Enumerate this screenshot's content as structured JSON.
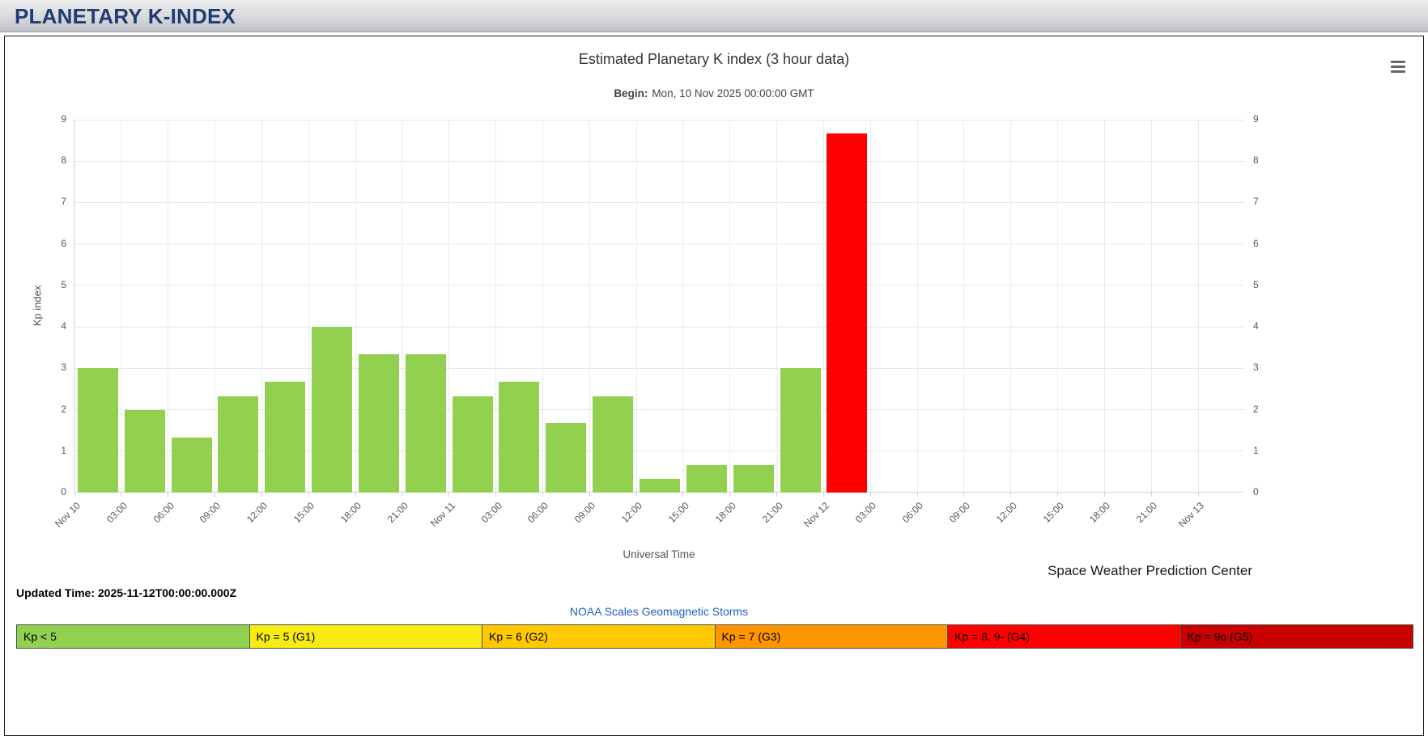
{
  "header": {
    "title": "PLANETARY K-INDEX"
  },
  "chart": {
    "title": "Estimated Planetary K index (3 hour data)",
    "subtitle_label": "Begin:",
    "subtitle_value": "Mon, 10 Nov 2025 00:00:00 GMT",
    "y_axis_label": "Kp index",
    "x_axis_label": "Universal Time",
    "credit": "Space Weather Prediction Center"
  },
  "chart_data": {
    "type": "bar",
    "title": "Estimated Planetary K index (3 hour data)",
    "subtitle": "Begin: Mon, 10 Nov 2025 00:00:00 GMT",
    "xlabel": "Universal Time",
    "ylabel": "Kp index",
    "ylim": [
      0,
      9
    ],
    "y_ticks": [
      0,
      1,
      2,
      3,
      4,
      5,
      6,
      7,
      8,
      9
    ],
    "grid": true,
    "legend_position": "none",
    "x_ticks": [
      "Nov 10",
      "03:00",
      "06:00",
      "09:00",
      "12:00",
      "15:00",
      "18:00",
      "21:00",
      "Nov 11",
      "03:00",
      "06:00",
      "09:00",
      "12:00",
      "15:00",
      "18:00",
      "21:00",
      "Nov 12",
      "03:00",
      "06:00",
      "09:00",
      "12:00",
      "15:00",
      "18:00",
      "21:00",
      "Nov 13"
    ],
    "values": [
      3,
      2,
      1.33,
      2.33,
      2.67,
      4,
      3.33,
      3.33,
      2.33,
      2.67,
      1.67,
      2.33,
      0.33,
      0.67,
      0.67,
      3,
      8.67
    ],
    "storm_threshold": 5,
    "colors": {
      "kp_below_5": "#92D050",
      "kp_storm": "#FF0000"
    }
  },
  "footer": {
    "updated_label": "Updated Time:",
    "updated_value": "2025-11-12T00:00:00.000Z",
    "noaa_scales_link": "NOAA Scales Geomagnetic Storms"
  },
  "legend": {
    "items": [
      {
        "label": "Kp < 5",
        "color": "#92D050"
      },
      {
        "label": "Kp = 5 (G1)",
        "color": "#F6EB14"
      },
      {
        "label": "Kp = 6 (G2)",
        "color": "#FFC800"
      },
      {
        "label": "Kp = 7 (G3)",
        "color": "#FF9600"
      },
      {
        "label": "Kp = 8, 9- (G4)",
        "color": "#FF0000"
      },
      {
        "label": "Kp = 9o (G5)",
        "color": "#C80000"
      }
    ]
  }
}
